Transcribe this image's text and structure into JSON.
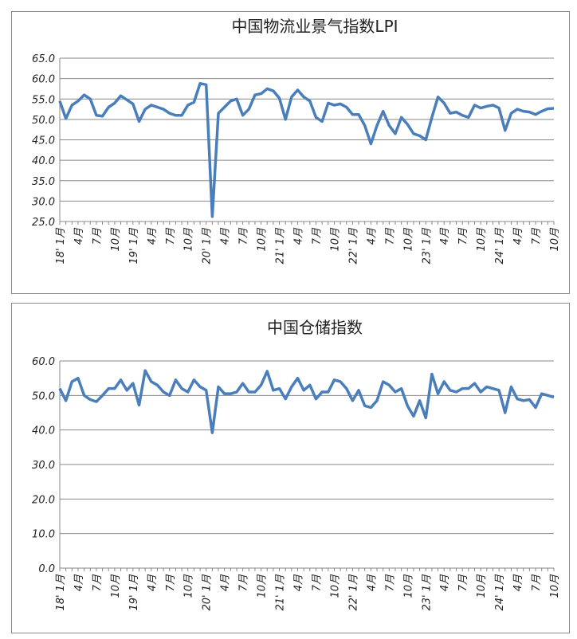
{
  "chart_data": [
    {
      "type": "line",
      "title": "中国物流业景气指数LPI",
      "categories": [
        "18' 1月",
        null,
        null,
        "4月",
        null,
        null,
        "7月",
        null,
        null,
        "10月",
        null,
        null,
        "19' 1月",
        null,
        null,
        "4月",
        null,
        null,
        "7月",
        null,
        null,
        "10月",
        null,
        null,
        "20' 1月",
        null,
        null,
        "4月",
        null,
        null,
        "7月",
        null,
        null,
        "10月",
        null,
        null,
        "21' 1月",
        null,
        null,
        "4月",
        null,
        null,
        "7月",
        null,
        null,
        "10月",
        null,
        null,
        "22' 1月",
        null,
        null,
        "4月",
        null,
        null,
        "7月",
        null,
        null,
        "10月",
        null,
        null,
        "23' 1月",
        null,
        null,
        "4月",
        null,
        null,
        "7月",
        null,
        null,
        "10月",
        null,
        null,
        "24' 1月",
        null,
        null,
        "4月",
        null,
        null,
        "7月",
        null,
        null,
        "10月"
      ],
      "series": [
        {
          "color": "#4a7ebb",
          "values": [
            54.5,
            50.2,
            53.5,
            54.5,
            56,
            55,
            51,
            50.8,
            53,
            54,
            55.8,
            54.8,
            53.8,
            49.5,
            52.5,
            53.5,
            53,
            52.5,
            51.5,
            51,
            51,
            53.5,
            54.2,
            58.8,
            58.5,
            26.2,
            51.5,
            53,
            54.5,
            55,
            51,
            52.5,
            56,
            56.3,
            57.5,
            57,
            55.2,
            50,
            55.5,
            57.2,
            55.5,
            54.5,
            50.5,
            49.5,
            54,
            53.5,
            53.8,
            53,
            51.2,
            51.2,
            48.5,
            44,
            48.5,
            52,
            48.5,
            46.5,
            50.5,
            48.8,
            46.5,
            46,
            45,
            50.5,
            55.5,
            54,
            51.5,
            51.8,
            51,
            50.5,
            53.5,
            52.8,
            53.2,
            53.5,
            52.8,
            47.3,
            51.5,
            52.5,
            52,
            51.8,
            51.2,
            52,
            52.6,
            52.7
          ]
        }
      ],
      "ylim": [
        25,
        65
      ],
      "yticks": [
        {
          "value": 25,
          "label": "25.0"
        },
        {
          "value": 30,
          "label": "30.0"
        },
        {
          "value": 35,
          "label": "35.0"
        },
        {
          "value": 40,
          "label": "40.0"
        },
        {
          "value": 45,
          "label": "45.0"
        },
        {
          "value": 50,
          "label": "50.0"
        },
        {
          "value": 55,
          "label": "55.0"
        },
        {
          "value": 60,
          "label": "60.0"
        },
        {
          "value": 65,
          "label": "65.0"
        }
      ],
      "grid": true
    },
    {
      "type": "line",
      "title": "中国仓储指数",
      "categories": [
        "18' 1月",
        null,
        null,
        "4月",
        null,
        null,
        "7月",
        null,
        null,
        "10月",
        null,
        null,
        "19' 1月",
        null,
        null,
        "4月",
        null,
        null,
        "7月",
        null,
        null,
        "10月",
        null,
        null,
        "20' 1月",
        null,
        null,
        "4月",
        null,
        null,
        "7月",
        null,
        null,
        "10月",
        null,
        null,
        "21' 1月",
        null,
        null,
        "4月",
        null,
        null,
        "7月",
        null,
        null,
        "10月",
        null,
        null,
        "22' 1月",
        null,
        null,
        "4月",
        null,
        null,
        "7月",
        null,
        null,
        "10月",
        null,
        null,
        "23' 1月",
        null,
        null,
        "4月",
        null,
        null,
        "7月",
        null,
        null,
        "10月",
        null,
        null,
        "24' 1月",
        null,
        null,
        "4月",
        null,
        null,
        "7月",
        null,
        null,
        "10月"
      ],
      "series": [
        {
          "color": "#4a7ebb",
          "values": [
            52,
            48.5,
            54,
            55,
            50,
            48.8,
            48.2,
            50,
            52,
            52,
            54.5,
            51.5,
            53.5,
            47.2,
            57.2,
            54,
            53,
            51,
            50,
            54.5,
            52,
            51,
            54.5,
            52.5,
            51.5,
            39.2,
            52.5,
            50.5,
            50.5,
            51,
            53.5,
            51,
            51,
            53,
            57,
            51.5,
            52,
            49,
            52.5,
            55,
            51.5,
            53,
            49,
            51,
            51,
            54.5,
            54,
            52,
            48.5,
            51.5,
            47,
            46.5,
            48.5,
            54,
            53,
            51,
            52,
            47,
            44,
            48.5,
            43.5,
            56.2,
            50.5,
            54,
            51.5,
            51,
            52,
            52,
            53.5,
            51,
            52.5,
            52,
            51.5,
            45,
            52.5,
            49,
            48.5,
            48.8,
            46.5,
            50.5,
            50,
            49.5
          ]
        }
      ],
      "ylim": [
        0,
        60
      ],
      "yticks": [
        {
          "value": 0,
          "label": "0.0"
        },
        {
          "value": 10,
          "label": "10.0"
        },
        {
          "value": 20,
          "label": "20.0"
        },
        {
          "value": 30,
          "label": "30.0"
        },
        {
          "value": 40,
          "label": "40.0"
        },
        {
          "value": 50,
          "label": "50.0"
        },
        {
          "value": 60,
          "label": "60.0"
        }
      ],
      "grid": true
    }
  ]
}
